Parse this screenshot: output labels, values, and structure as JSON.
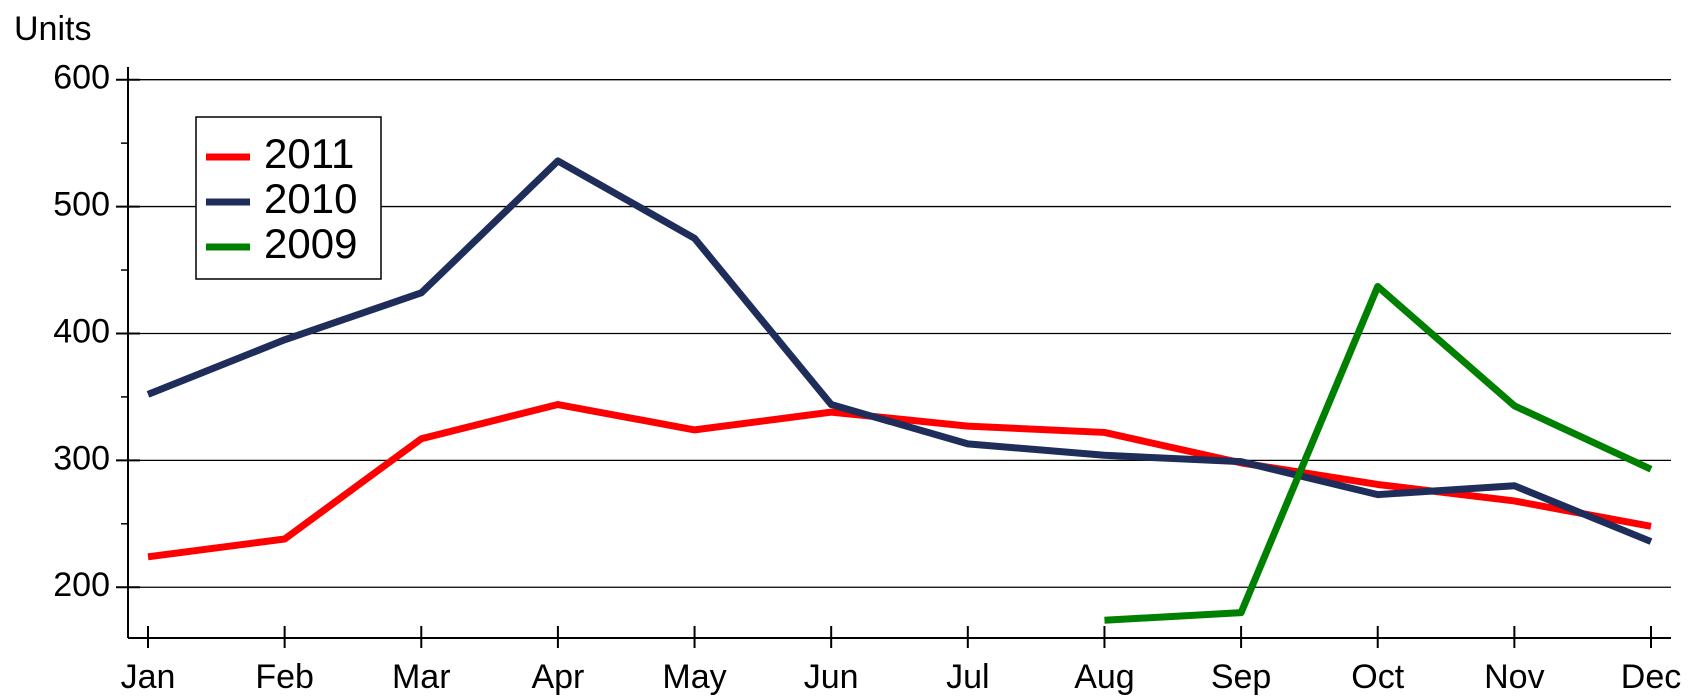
{
  "chart_data": {
    "type": "line",
    "y_label": "Units",
    "categories": [
      "Jan",
      "Feb",
      "Mar",
      "Apr",
      "May",
      "Jun",
      "Jul",
      "Aug",
      "Sep",
      "Oct",
      "Nov",
      "Dec"
    ],
    "series": [
      {
        "name": "2011",
        "color": "#ff0000",
        "values": [
          224,
          238,
          317,
          344,
          324,
          338,
          327,
          322,
          298,
          281,
          268,
          248
        ]
      },
      {
        "name": "2010",
        "color": "#1f2d5a",
        "values": [
          352,
          395,
          432,
          536,
          475,
          344,
          313,
          304,
          299,
          273,
          280,
          236
        ]
      },
      {
        "name": "2009",
        "color": "#008000",
        "values": [
          null,
          null,
          null,
          null,
          null,
          null,
          null,
          174,
          180,
          437,
          343,
          293
        ]
      }
    ],
    "ylim": [
      160,
      610
    ],
    "yticks": [
      200,
      300,
      400,
      500,
      600
    ],
    "minor_yticks": [
      250,
      350,
      450,
      550
    ],
    "grid": true,
    "legend": "upper left"
  }
}
